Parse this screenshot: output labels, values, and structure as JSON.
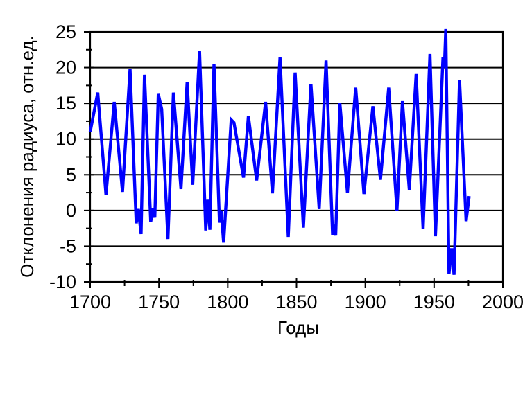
{
  "figure": {
    "background": "#ffffff"
  },
  "chart_data": {
    "type": "line",
    "title": "",
    "xlabel": "Годы",
    "ylabel": "Отклонения радиуса, отн.ед.",
    "xlim": [
      1700,
      2000
    ],
    "ylim": [
      -10,
      25
    ],
    "x_ticks": [
      1700,
      1750,
      1800,
      1850,
      1900,
      1950,
      2000
    ],
    "x_minor_ticks": [
      1725,
      1775,
      1825,
      1875,
      1925,
      1975
    ],
    "y_ticks": [
      25,
      20,
      15,
      10,
      5,
      0,
      -5,
      -10
    ],
    "y_minor_ticks": [
      22.5,
      17.5,
      12.5,
      7.5,
      2.5,
      -2.5,
      -7.5
    ],
    "grid": "horizontal-major",
    "legend": "none",
    "line_color": "#0000FF",
    "axis_color": "#000000",
    "series": [
      {
        "points": [
          [
            1700,
            11.0
          ],
          [
            1705.5,
            16.5
          ],
          [
            1711.5,
            2.2
          ],
          [
            1717.5,
            15.2
          ],
          [
            1723.5,
            2.6
          ],
          [
            1729,
            19.8
          ],
          [
            1733.5,
            -1.8
          ],
          [
            1735,
            0.2
          ],
          [
            1737,
            -3.3
          ],
          [
            1739.5,
            19.0
          ],
          [
            1744,
            -1.6
          ],
          [
            1745.5,
            0.3
          ],
          [
            1747,
            -1.0
          ],
          [
            1749.5,
            16.3
          ],
          [
            1752,
            14.2
          ],
          [
            1756.5,
            -4.0
          ],
          [
            1760.5,
            16.5
          ],
          [
            1766,
            3.0
          ],
          [
            1770.5,
            18.0
          ],
          [
            1774.5,
            3.6
          ],
          [
            1779.5,
            22.3
          ],
          [
            1784,
            -2.8
          ],
          [
            1785.5,
            1.5
          ],
          [
            1787,
            -2.7
          ],
          [
            1790,
            20.5
          ],
          [
            1794,
            -1.7
          ],
          [
            1795.2,
            0.0
          ],
          [
            1797,
            -4.5
          ],
          [
            1802.5,
            12.7
          ],
          [
            1804.5,
            12.3
          ],
          [
            1811.5,
            4.6
          ],
          [
            1815,
            13.2
          ],
          [
            1821,
            4.2
          ],
          [
            1827.5,
            15.2
          ],
          [
            1832.5,
            2.4
          ],
          [
            1838,
            21.4
          ],
          [
            1844,
            -3.7
          ],
          [
            1849,
            19.3
          ],
          [
            1855,
            -2.4
          ],
          [
            1860.5,
            17.7
          ],
          [
            1866.5,
            0.2
          ],
          [
            1871.5,
            21.0
          ],
          [
            1876.2,
            -3.4
          ],
          [
            1877.3,
            -2.0
          ],
          [
            1878.5,
            -3.5
          ],
          [
            1881.5,
            15.0
          ],
          [
            1887,
            2.5
          ],
          [
            1893,
            17.2
          ],
          [
            1899,
            2.3
          ],
          [
            1905.5,
            14.6
          ],
          [
            1911,
            4.3
          ],
          [
            1917,
            17.2
          ],
          [
            1923,
            0.0
          ],
          [
            1927,
            15.3
          ],
          [
            1932,
            2.9
          ],
          [
            1937,
            19.1
          ],
          [
            1942,
            -2.6
          ],
          [
            1947,
            21.9
          ],
          [
            1951,
            -3.6
          ],
          [
            1956.5,
            21.5
          ],
          [
            1957.5,
            20.0
          ],
          [
            1958.5,
            25.4
          ],
          [
            1960.8,
            -8.9
          ],
          [
            1962.8,
            -5.3
          ],
          [
            1964.5,
            -9.0
          ],
          [
            1968.5,
            18.3
          ],
          [
            1973.3,
            -1.5
          ],
          [
            1975.5,
            2.0
          ]
        ]
      }
    ]
  }
}
